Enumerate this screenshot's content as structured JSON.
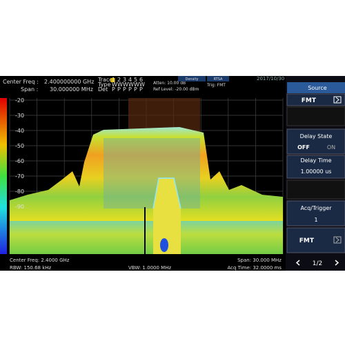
{
  "header": {
    "center_freq_label": "Center Freq :",
    "center_freq_value": "2.400000000 GHz",
    "span_label": "Span :",
    "span_value": "30.000000 MHz",
    "trace_label": "Trace",
    "trace_numbers": [
      "1",
      "2",
      "3",
      "4",
      "5",
      "6"
    ],
    "type_label": "Type",
    "type_values": [
      "W",
      "W",
      "W",
      "W",
      "W",
      "W"
    ],
    "det_label": "Det",
    "det_values": [
      "P",
      "P",
      "P",
      "P",
      "P",
      "P"
    ],
    "atten": "Atten: 10.00 dB",
    "ref_level": "Ref Level: -20.00 dBm",
    "trig": "Trig: FMT",
    "mode_density": "Density",
    "mode_rtsa": "RTSA",
    "date": "2017/10/30"
  },
  "y_axis": {
    "ticks": [
      "-20",
      "-30",
      "-40",
      "-50",
      "-60",
      "-70",
      "-80",
      "-90"
    ]
  },
  "footer": {
    "center_freq": "Center Freq: 2.4000 GHz",
    "span": "Span: 30.000 MHz",
    "rbw": "RBW: 150.68 kHz",
    "vbw": "VBW: 1.0000 MHz",
    "acq_time": "Acq Time: 32.0000 ms"
  },
  "menu": {
    "title": "Source",
    "items": [
      {
        "label": "FMT"
      },
      {
        "label": "Delay State",
        "options": [
          "OFF",
          "ON"
        ]
      },
      {
        "label": "Delay Time",
        "value": "1.00000 us"
      },
      {
        "label": "Acq/Trigger",
        "value": "1"
      },
      {
        "label": "FMT"
      }
    ],
    "page": "1/2"
  }
}
